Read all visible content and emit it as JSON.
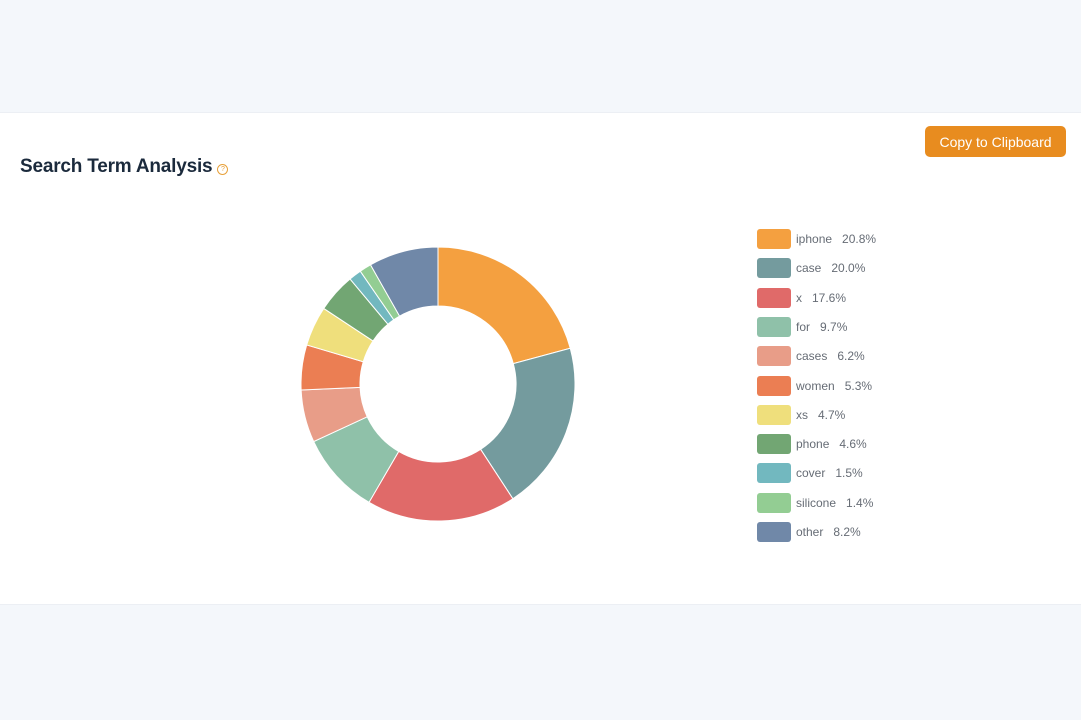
{
  "toolbar": {
    "copy_label": "Copy to Clipboard"
  },
  "header": {
    "title": "Search Term Analysis",
    "help_icon": "question-circle-icon"
  },
  "chart_data": {
    "type": "pie",
    "variant": "donut",
    "legend_position": "right",
    "categories": [
      "iphone",
      "case",
      "x",
      "for",
      "cases",
      "women",
      "xs",
      "phone",
      "cover",
      "silicone",
      "other"
    ],
    "values": [
      20.8,
      20.0,
      17.6,
      9.7,
      6.2,
      5.3,
      4.7,
      4.6,
      1.5,
      1.4,
      8.2
    ],
    "value_labels": [
      "20.8%",
      "20.0%",
      "17.6%",
      "9.7%",
      "6.2%",
      "5.3%",
      "4.7%",
      "4.6%",
      "1.5%",
      "1.4%",
      "8.2%"
    ],
    "colors": [
      "#f4a040",
      "#749b9e",
      "#e06a69",
      "#8fc1a9",
      "#e89d88",
      "#eb7e53",
      "#efdf7c",
      "#72a673",
      "#72b8bf",
      "#93cd93",
      "#7088a8"
    ]
  }
}
